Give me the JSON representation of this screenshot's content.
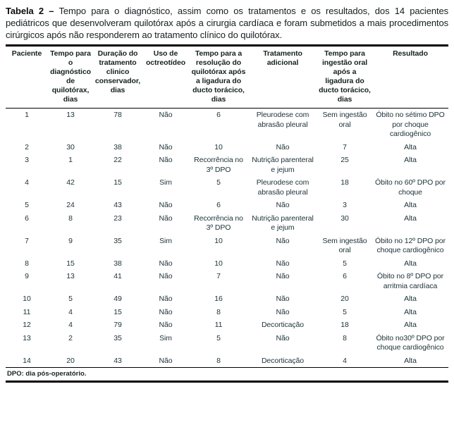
{
  "caption": {
    "label": "Tabela 2 –",
    "text": "Tempo para o diagnóstico, assim como os tratamentos e os resultados, dos 14 pacientes pediátricos que desenvolveram quilotórax após a cirurgia cardíaca e foram submetidos a mais procedimentos cirúrgicos após não responderem ao tratamento clínico do quilotórax."
  },
  "table": {
    "columns": [
      "Paciente",
      "Tempo para o diagnóstico de quilotórax, dias",
      "Duração do tratamento clinico conservador, dias",
      "Uso de octreotídeo",
      "Tempo para a resolução do quilotórax após a ligadura do ducto torácico, dias",
      "Tratamento adicional",
      "Tempo para ingestão oral após a ligadura do ducto torácico, dias",
      "Resultado"
    ],
    "rows": [
      [
        "1",
        "13",
        "78",
        "Não",
        "6",
        "Pleurodese com abrasão pleural",
        "Sem ingestão oral",
        "Óbito no sétimo DPO por choque cardiogênico"
      ],
      [
        "2",
        "30",
        "38",
        "Não",
        "10",
        "Não",
        "7",
        "Alta"
      ],
      [
        "3",
        "1",
        "22",
        "Não",
        "Recorrência no 3º DPO",
        "Nutrição parenteral e jejum",
        "25",
        "Alta"
      ],
      [
        "4",
        "42",
        "15",
        "Sim",
        "5",
        "Pleurodese com abrasão pleural",
        "18",
        "Óbito no 60º DPO por choque"
      ],
      [
        "5",
        "24",
        "43",
        "Não",
        "6",
        "Não",
        "3",
        "Alta"
      ],
      [
        "6",
        "8",
        "23",
        "Não",
        "Recorrência no 3º DPO",
        "Nutrição parenteral e jejum",
        "30",
        "Alta"
      ],
      [
        "7",
        "9",
        "35",
        "Sim",
        "10",
        "Não",
        "Sem ingestão oral",
        "Óbito no 12º DPO por choque cardiogênico"
      ],
      [
        "8",
        "15",
        "38",
        "Não",
        "10",
        "Não",
        "5",
        "Alta"
      ],
      [
        "9",
        "13",
        "41",
        "Não",
        "7",
        "Não",
        "6",
        "Óbito no 8º DPO por arritmia cardíaca"
      ],
      [
        "10",
        "5",
        "49",
        "Não",
        "16",
        "Não",
        "20",
        "Alta"
      ],
      [
        "11",
        "4",
        "15",
        "Não",
        "8",
        "Não",
        "5",
        "Alta"
      ],
      [
        "12",
        "4",
        "79",
        "Não",
        "11",
        "Decorticação",
        "18",
        "Alta"
      ],
      [
        "13",
        "2",
        "35",
        "Sim",
        "5",
        "Não",
        "8",
        "Óbito no30º DPO por choque cardiogênico"
      ],
      [
        "14",
        "20",
        "43",
        "Não",
        "8",
        "Decorticação",
        "4",
        "Alta"
      ]
    ]
  },
  "footnote": "DPO: dia pós-operatório.",
  "colors": {
    "background": "#ffffff",
    "text": "#20343a",
    "rule": "#000000"
  }
}
